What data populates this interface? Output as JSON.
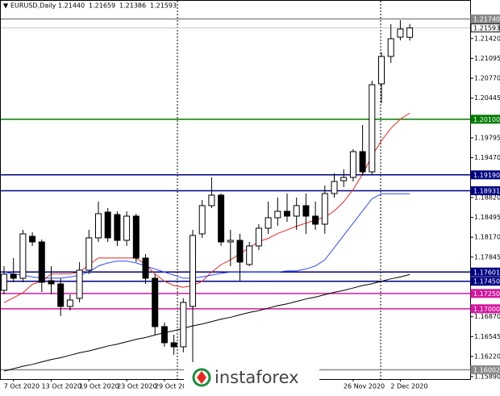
{
  "chart_data": {
    "type": "candlestick",
    "title": "EURUSD,Daily",
    "header_values": [
      "1.21440",
      "1.21659",
      "1.21386",
      "1.21593"
    ],
    "categories": [
      null,
      "7 Oct 2020",
      null,
      null,
      null,
      "13 Oct 2020",
      null,
      null,
      null,
      "19 Oct 2020",
      null,
      null,
      null,
      "23 Oct 2020",
      null,
      null,
      null,
      "29 Oct 2020",
      null,
      null,
      null,
      null,
      null,
      null,
      null,
      null,
      null,
      null,
      null,
      null,
      null,
      null,
      null,
      null,
      null,
      null,
      null,
      "26 Nov 2020",
      null,
      null,
      null,
      null,
      "2 Dec 2020",
      null
    ],
    "open": [
      1.17302,
      1.17565,
      1.17499,
      1.18185,
      1.18093,
      1.1746,
      1.17407,
      1.17038,
      1.1717,
      1.17631,
      1.18159,
      1.18581,
      1.18541,
      1.18119,
      1.18515,
      1.17829,
      1.17499,
      1.16708,
      1.16444,
      1.16378,
      1.17038,
      1.18225,
      1.18687,
      1.18858,
      1.18093,
      1.18119,
      1.17724,
      1.18027,
      1.18317,
      1.18489,
      1.18594,
      1.18515,
      1.18687,
      1.18515,
      1.18383,
      1.18884,
      1.19095,
      1.19148,
      1.1957,
      1.1924,
      1.20678,
      1.21127,
      1.21443,
      1.2144
    ],
    "high": [
      1.17697,
      1.17829,
      1.18291,
      1.18251,
      1.18133,
      1.17697,
      1.17499,
      1.17236,
      1.17763,
      1.18291,
      1.18752,
      1.18647,
      1.18594,
      1.18594,
      1.18555,
      1.17895,
      1.17565,
      1.16774,
      1.16576,
      1.1717,
      1.18291,
      1.18779,
      1.19148,
      1.18884,
      1.18291,
      1.18225,
      1.18093,
      1.18383,
      1.18752,
      1.18818,
      1.18884,
      1.18818,
      1.18884,
      1.18752,
      1.19016,
      1.19214,
      1.1928,
      1.1961,
      1.20006,
      1.20731,
      1.21193,
      1.21654,
      1.2172,
      1.21659
    ],
    "low": [
      1.17236,
      1.17433,
      1.17433,
      1.18027,
      1.17275,
      1.17236,
      1.1688,
      1.16972,
      1.17104,
      1.17565,
      1.18093,
      1.18093,
      1.18027,
      1.18027,
      1.17763,
      1.17407,
      1.16576,
      1.16378,
      1.16246,
      1.16286,
      1.16009,
      1.18159,
      1.18647,
      1.18027,
      1.17697,
      1.1746,
      1.17697,
      1.17961,
      1.18225,
      1.18357,
      1.18423,
      1.18291,
      1.18225,
      1.18291,
      1.18225,
      1.18818,
      1.1899,
      1.19082,
      1.19175,
      1.192,
      1.20362,
      1.21021,
      1.2139,
      1.21386
    ],
    "close": [
      1.17565,
      1.17499,
      1.18225,
      1.18093,
      1.17433,
      1.17407,
      1.17038,
      1.17143,
      1.17631,
      1.18159,
      1.18555,
      1.18159,
      1.18119,
      1.18515,
      1.17829,
      1.17499,
      1.16708,
      1.16444,
      1.16378,
      1.17104,
      1.18199,
      1.18687,
      1.18858,
      1.18093,
      1.18119,
      1.17763,
      1.18027,
      1.18317,
      1.18489,
      1.18594,
      1.18515,
      1.18687,
      1.18515,
      1.18383,
      1.18884,
      1.19082,
      1.19148,
      1.1957,
      1.1924,
      1.20665,
      1.21127,
      1.21417,
      1.21575,
      1.21593
    ],
    "up_color": "#ffffff",
    "down_color": "#000000",
    "lines": [
      {
        "color": "#000000",
        "values": [
          1.1598,
          1.1602,
          1.1606,
          1.1609,
          1.1613,
          1.1617,
          1.162,
          1.1624,
          1.1628,
          1.1631,
          1.1635,
          1.1639,
          1.1642,
          1.1646,
          1.165,
          1.1653,
          1.1657,
          1.1661,
          1.1664,
          1.1668,
          1.1672,
          1.1675,
          1.1679,
          1.1683,
          1.1686,
          1.169,
          1.1694,
          1.1697,
          1.1701,
          1.1705,
          1.1708,
          1.1712,
          1.1716,
          1.1719,
          1.1723,
          1.1727,
          1.173,
          1.1734,
          1.1738,
          1.1741,
          1.1745,
          1.1749,
          1.1752,
          1.1756
        ]
      },
      {
        "color": "#e8281e",
        "values": [
          1.171,
          1.1718,
          1.1726,
          1.174,
          1.1745,
          1.1757,
          1.1757,
          1.1757,
          1.176,
          1.1772,
          1.1783,
          1.1783,
          1.1783,
          1.1783,
          1.1783,
          1.1772,
          1.1757,
          1.1745,
          1.1738,
          1.1735,
          1.1738,
          1.1745,
          1.176,
          1.1772,
          1.178,
          1.179,
          1.18,
          1.181,
          1.1815,
          1.1823,
          1.1829,
          1.1835,
          1.184,
          1.1845,
          1.185,
          1.186,
          1.1875,
          1.1895,
          1.192,
          1.195,
          1.1975,
          1.1995,
          1.201,
          1.202
        ]
      },
      {
        "color": "#2e4bff",
        "values": [
          1.176,
          1.1757,
          1.1755,
          1.1752,
          1.175,
          1.175,
          1.175,
          1.1752,
          1.1755,
          1.176,
          1.177,
          1.1775,
          1.1778,
          1.1778,
          1.1775,
          1.177,
          1.1765,
          1.176,
          1.1755,
          1.175,
          1.175,
          1.1752,
          1.1755,
          1.1758,
          1.176,
          1.176,
          1.176,
          1.176,
          1.176,
          1.176,
          1.1762,
          1.1762,
          1.1765,
          1.177,
          1.178,
          1.18,
          1.182,
          1.184,
          1.186,
          1.188,
          1.1888,
          1.1888,
          1.1888,
          1.1888
        ]
      }
    ],
    "levels": [
      {
        "value": 1.2174,
        "label": "1.21740",
        "color": "#8a8a8a",
        "text_color": "#ffffff"
      },
      {
        "value": 1.21593,
        "label": "1.21593",
        "color": "#ffffff",
        "text_color": "#000000"
      },
      {
        "value": 1.201,
        "label": "1.20100",
        "color": "#007a00",
        "text_color": "#ffffff"
      },
      {
        "value": 1.1919,
        "label": "1.19190",
        "color": "#000080",
        "text_color": "#ffffff"
      },
      {
        "value": 1.18931,
        "label": "1.18931",
        "color": "#000080",
        "text_color": "#ffffff"
      },
      {
        "value": 1.17601,
        "label": "1.17601",
        "color": "#000080",
        "text_color": "#ffffff"
      },
      {
        "value": 1.1745,
        "label": "1.17450",
        "color": "#000080",
        "text_color": "#ffffff"
      },
      {
        "value": 1.1725,
        "label": "1.17250",
        "color": "#d4189e",
        "text_color": "#ffffff"
      },
      {
        "value": 1.17,
        "label": "1.17000",
        "color": "#d4189e",
        "text_color": "#ffffff"
      },
      {
        "value": 1.16002,
        "label": "1.16002",
        "color": "#8a8a8a",
        "text_color": "#ffffff"
      }
    ],
    "ylim": [
      1.1585,
      1.2205
    ],
    "yticks": [
      {
        "value": 1.2142,
        "label": "1.21420"
      },
      {
        "value": 1.21095,
        "label": "1.21095"
      },
      {
        "value": 1.2077,
        "label": "1.20770"
      },
      {
        "value": 1.20445,
        "label": "1.20445"
      },
      {
        "value": 1.19795,
        "label": "1.19795"
      },
      {
        "value": 1.1947,
        "label": "1.19470"
      },
      {
        "value": 1.1882,
        "label": "1.18820"
      },
      {
        "value": 1.18495,
        "label": "1.18495"
      },
      {
        "value": 1.1817,
        "label": "1.18170"
      },
      {
        "value": 1.17845,
        "label": "1.17845"
      },
      {
        "value": 1.1687,
        "label": "1.16870"
      },
      {
        "value": 1.16545,
        "label": "1.16545"
      },
      {
        "value": 1.1622,
        "label": "1.16220"
      },
      {
        "value": 1.1589,
        "label": "1.15890"
      }
    ],
    "watermark": "instaforex"
  }
}
